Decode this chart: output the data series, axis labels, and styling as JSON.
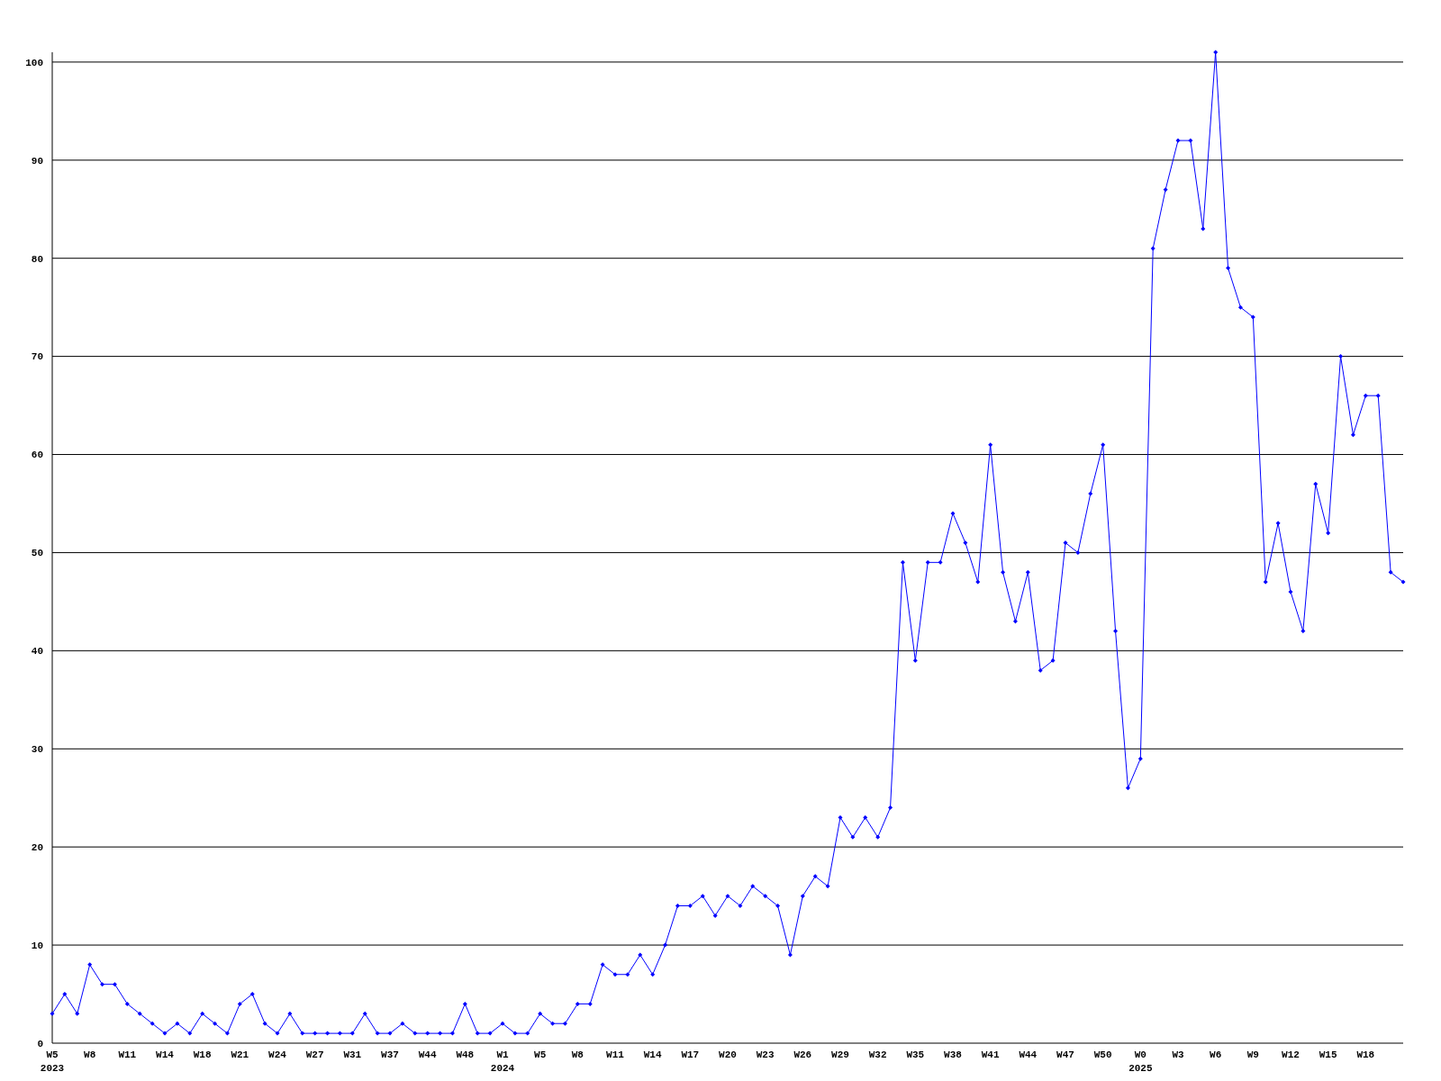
{
  "chart_data": {
    "type": "line",
    "categories": [
      "W5\n2023",
      null,
      null,
      "W8",
      null,
      null,
      "W11",
      null,
      null,
      "W14",
      null,
      null,
      "W18",
      null,
      null,
      "W21",
      null,
      null,
      "W24",
      null,
      null,
      "W27",
      null,
      null,
      "W31",
      null,
      null,
      "W37",
      null,
      null,
      "W44",
      null,
      null,
      "W48",
      null,
      null,
      "W1\n2024",
      null,
      null,
      "W5",
      null,
      null,
      "W8",
      null,
      null,
      "W11",
      null,
      null,
      "W14",
      null,
      null,
      "W17",
      null,
      null,
      "W20",
      null,
      null,
      "W23",
      null,
      null,
      "W26",
      null,
      null,
      "W29",
      null,
      null,
      "W32",
      null,
      null,
      "W35",
      null,
      null,
      "W38",
      null,
      null,
      "W41",
      null,
      null,
      "W44",
      null,
      null,
      "W47",
      null,
      null,
      "W50",
      null,
      null,
      "W0\n2025",
      null,
      null,
      "W3",
      null,
      null,
      "W6",
      null,
      null,
      "W9",
      null,
      null,
      "W12",
      null,
      null,
      "W15",
      null,
      null,
      "W18",
      null,
      null,
      null
    ],
    "series": [
      {
        "color": "#0000ff",
        "values": [
          3,
          5,
          3,
          8,
          6,
          6,
          4,
          3,
          2,
          1,
          2,
          1,
          3,
          2,
          1,
          4,
          5,
          2,
          1,
          3,
          1,
          1,
          1,
          1,
          1,
          3,
          1,
          1,
          2,
          1,
          1,
          1,
          1,
          4,
          1,
          1,
          2,
          1,
          1,
          3,
          2,
          2,
          4,
          4,
          8,
          7,
          7,
          9,
          7,
          10,
          14,
          14,
          15,
          13,
          15,
          14,
          16,
          15,
          14,
          9,
          15,
          17,
          16,
          23,
          21,
          23,
          21,
          24,
          49,
          39,
          49,
          49,
          54,
          51,
          47,
          61,
          48,
          43,
          48,
          38,
          39,
          51,
          50,
          56,
          61,
          42,
          26,
          29,
          81,
          87,
          92,
          92,
          83,
          101,
          79,
          75,
          74,
          47,
          53,
          46,
          42,
          57,
          52,
          70,
          62,
          66,
          66,
          48,
          47
        ]
      }
    ],
    "ylim": [
      0,
      101
    ],
    "yticks": [
      0,
      10,
      20,
      30,
      40,
      50,
      60,
      70,
      80,
      90,
      100
    ],
    "grid": "y",
    "marker": "diamond",
    "line_style": "solid"
  }
}
